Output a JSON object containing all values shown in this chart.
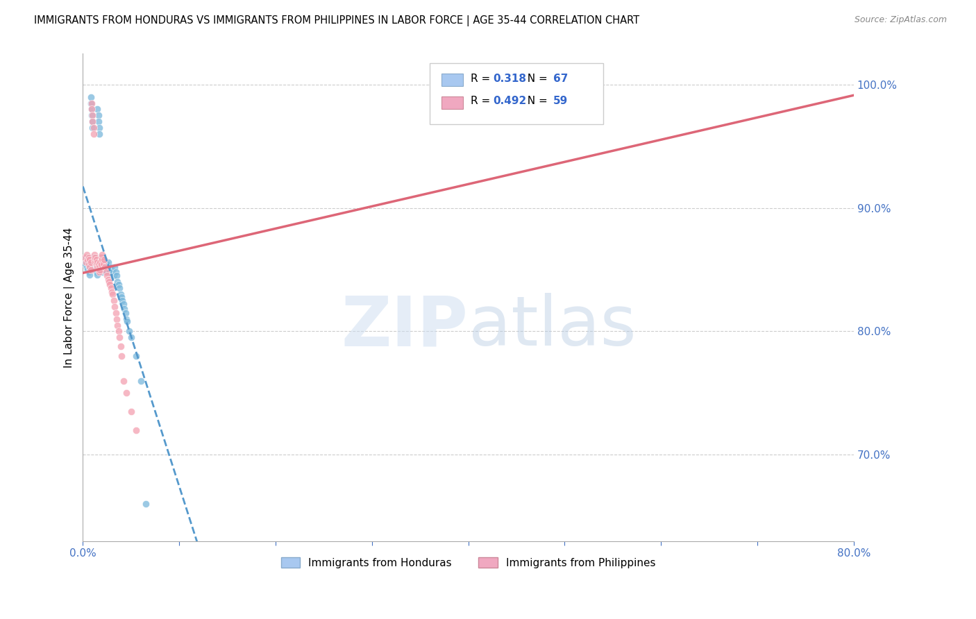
{
  "title": "IMMIGRANTS FROM HONDURAS VS IMMIGRANTS FROM PHILIPPINES IN LABOR FORCE | AGE 35-44 CORRELATION CHART",
  "source": "Source: ZipAtlas.com",
  "ylabel": "In Labor Force | Age 35-44",
  "xlim": [
    0.0,
    0.8
  ],
  "ylim": [
    0.63,
    1.025
  ],
  "yticks_right": [
    0.7,
    0.8,
    0.9,
    1.0
  ],
  "yticklabels_right": [
    "70.0%",
    "80.0%",
    "90.0%",
    "100.0%"
  ],
  "legend_color1": "#a8c8f0",
  "legend_color2": "#f0a8c0",
  "color_honduras": "#7ab8dc",
  "color_philippines": "#f4a0b0",
  "color_line_honduras": "#5599cc",
  "color_line_philippines": "#dd6677",
  "watermark_color": "#ddeeff",
  "R_honduras": 0.318,
  "R_philippines": 0.492,
  "N_honduras": 67,
  "N_philippines": 59,
  "honduras_x": [
    0.002,
    0.003,
    0.004,
    0.004,
    0.005,
    0.005,
    0.006,
    0.006,
    0.007,
    0.007,
    0.008,
    0.008,
    0.009,
    0.009,
    0.01,
    0.01,
    0.011,
    0.011,
    0.012,
    0.012,
    0.013,
    0.013,
    0.014,
    0.014,
    0.015,
    0.015,
    0.016,
    0.016,
    0.017,
    0.017,
    0.018,
    0.018,
    0.019,
    0.019,
    0.02,
    0.02,
    0.021,
    0.022,
    0.023,
    0.024,
    0.025,
    0.026,
    0.027,
    0.028,
    0.029,
    0.03,
    0.031,
    0.032,
    0.033,
    0.034,
    0.035,
    0.036,
    0.037,
    0.038,
    0.039,
    0.04,
    0.041,
    0.042,
    0.043,
    0.044,
    0.045,
    0.046,
    0.048,
    0.05,
    0.055,
    0.06,
    0.065
  ],
  "honduras_y": [
    0.855,
    0.86,
    0.852,
    0.858,
    0.85,
    0.856,
    0.848,
    0.854,
    0.846,
    0.852,
    0.985,
    0.99,
    0.98,
    0.975,
    0.97,
    0.965,
    0.855,
    0.86,
    0.858,
    0.852,
    0.85,
    0.856,
    0.848,
    0.854,
    0.846,
    0.98,
    0.975,
    0.97,
    0.965,
    0.96,
    0.855,
    0.86,
    0.852,
    0.858,
    0.848,
    0.854,
    0.85,
    0.852,
    0.856,
    0.848,
    0.854,
    0.856,
    0.85,
    0.848,
    0.852,
    0.85,
    0.848,
    0.845,
    0.852,
    0.848,
    0.845,
    0.84,
    0.838,
    0.835,
    0.83,
    0.828,
    0.825,
    0.822,
    0.818,
    0.815,
    0.81,
    0.808,
    0.8,
    0.795,
    0.78,
    0.76,
    0.66
  ],
  "philippines_x": [
    0.002,
    0.003,
    0.004,
    0.005,
    0.006,
    0.006,
    0.007,
    0.007,
    0.008,
    0.008,
    0.009,
    0.009,
    0.01,
    0.01,
    0.011,
    0.011,
    0.012,
    0.012,
    0.013,
    0.013,
    0.014,
    0.014,
    0.015,
    0.015,
    0.016,
    0.016,
    0.017,
    0.017,
    0.018,
    0.018,
    0.019,
    0.019,
    0.02,
    0.02,
    0.021,
    0.022,
    0.023,
    0.024,
    0.025,
    0.026,
    0.027,
    0.028,
    0.029,
    0.03,
    0.031,
    0.032,
    0.033,
    0.034,
    0.035,
    0.036,
    0.037,
    0.038,
    0.039,
    0.04,
    0.042,
    0.045,
    0.05,
    0.055,
    0.4
  ],
  "philippines_y": [
    0.86,
    0.856,
    0.862,
    0.858,
    0.854,
    0.86,
    0.852,
    0.858,
    0.85,
    0.856,
    0.985,
    0.98,
    0.975,
    0.97,
    0.965,
    0.96,
    0.858,
    0.862,
    0.856,
    0.86,
    0.854,
    0.858,
    0.852,
    0.856,
    0.85,
    0.854,
    0.848,
    0.852,
    0.85,
    0.856,
    0.854,
    0.86,
    0.858,
    0.862,
    0.855,
    0.858,
    0.852,
    0.848,
    0.845,
    0.842,
    0.84,
    0.838,
    0.835,
    0.832,
    0.83,
    0.825,
    0.82,
    0.815,
    0.81,
    0.805,
    0.8,
    0.795,
    0.788,
    0.78,
    0.76,
    0.75,
    0.735,
    0.72,
    1.0
  ]
}
